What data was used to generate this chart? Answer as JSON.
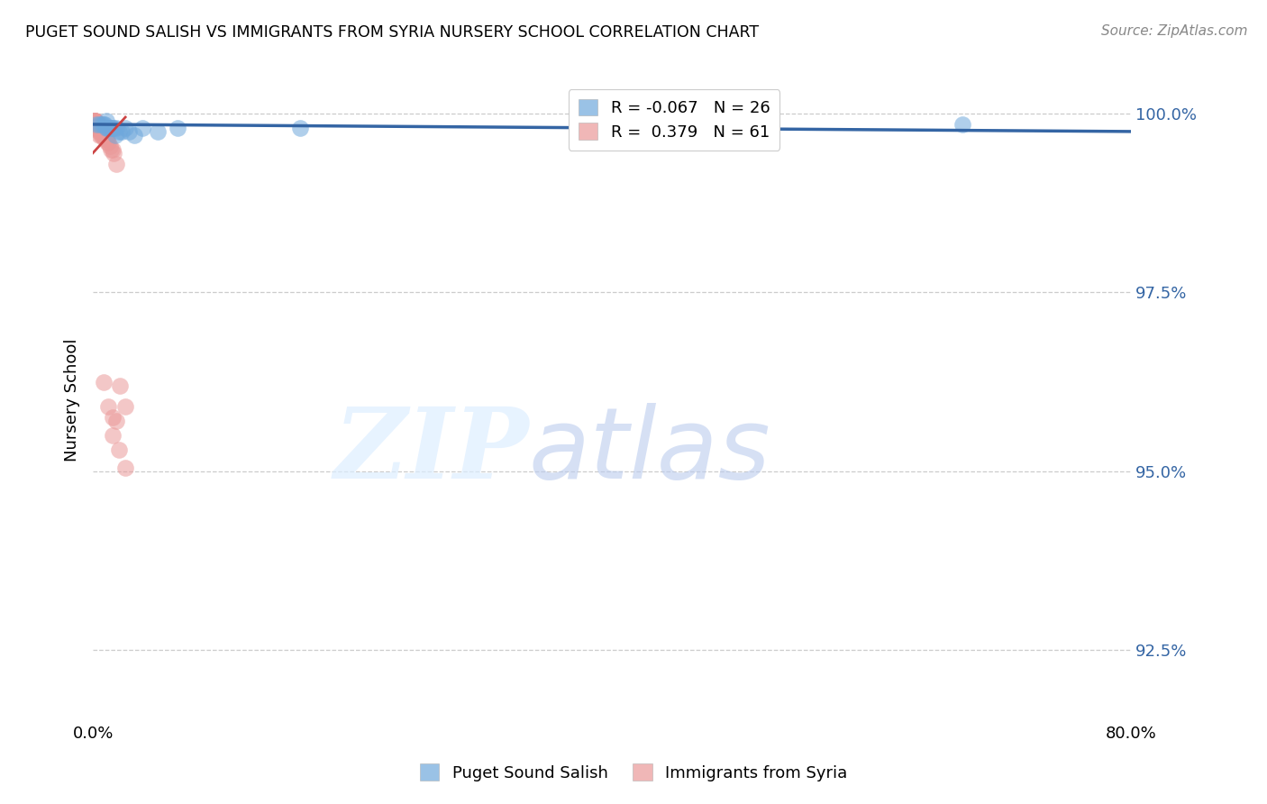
{
  "title": "PUGET SOUND SALISH VS IMMIGRANTS FROM SYRIA NURSERY SCHOOL CORRELATION CHART",
  "source": "Source: ZipAtlas.com",
  "ylabel": "Nursery School",
  "xlim": [
    0.0,
    0.8
  ],
  "ylim": [
    0.915,
    1.005
  ],
  "yticks": [
    0.925,
    0.95,
    0.975,
    1.0
  ],
  "ytick_labels": [
    "92.5%",
    "95.0%",
    "97.5%",
    "100.0%"
  ],
  "xticks": [
    0.0,
    0.1,
    0.2,
    0.3,
    0.4,
    0.5,
    0.6,
    0.7,
    0.8
  ],
  "xtick_labels": [
    "0.0%",
    "",
    "",
    "",
    "",
    "",
    "",
    "",
    "80.0%"
  ],
  "blue_color": "#6fa8dc",
  "pink_color": "#ea9999",
  "blue_line_color": "#3465a4",
  "pink_line_color": "#cc4444",
  "tick_color": "#3465a4",
  "legend_label_blue": "R = -0.067   N = 26",
  "legend_label_pink": "R =  0.379   N = 61",
  "legend_label_bottom_blue": "Puget Sound Salish",
  "legend_label_bottom_pink": "Immigrants from Syria",
  "blue_scatter_x": [
    0.003,
    0.005,
    0.007,
    0.008,
    0.009,
    0.01,
    0.01,
    0.011,
    0.012,
    0.013,
    0.014,
    0.015,
    0.016,
    0.017,
    0.018,
    0.02,
    0.022,
    0.025,
    0.028,
    0.032,
    0.038,
    0.05,
    0.065,
    0.16,
    0.45,
    0.67
  ],
  "blue_scatter_y": [
    0.9985,
    0.9985,
    0.9985,
    0.9985,
    0.9985,
    0.998,
    0.999,
    0.998,
    0.998,
    0.998,
    0.998,
    0.998,
    0.998,
    0.997,
    0.998,
    0.9975,
    0.9975,
    0.998,
    0.9975,
    0.997,
    0.998,
    0.9975,
    0.998,
    0.998,
    0.997,
    0.9985
  ],
  "pink_scatter_x": [
    0.001,
    0.001,
    0.001,
    0.001,
    0.001,
    0.001,
    0.001,
    0.001,
    0.001,
    0.001,
    0.002,
    0.002,
    0.002,
    0.002,
    0.002,
    0.002,
    0.002,
    0.002,
    0.003,
    0.003,
    0.003,
    0.003,
    0.003,
    0.003,
    0.004,
    0.004,
    0.004,
    0.004,
    0.005,
    0.005,
    0.005,
    0.005,
    0.005,
    0.006,
    0.006,
    0.006,
    0.007,
    0.007,
    0.008,
    0.008,
    0.009,
    0.009,
    0.01,
    0.01,
    0.011,
    0.011,
    0.012,
    0.013,
    0.014,
    0.015,
    0.016,
    0.018,
    0.021,
    0.025,
    0.008,
    0.012,
    0.015,
    0.018,
    0.015,
    0.02,
    0.025
  ],
  "pink_scatter_y": [
    0.9985,
    0.999,
    0.9985,
    0.999,
    0.9985,
    0.999,
    0.9985,
    0.999,
    0.999,
    0.9985,
    0.999,
    0.9985,
    0.999,
    0.9985,
    0.9985,
    0.998,
    0.998,
    0.9985,
    0.9985,
    0.998,
    0.9985,
    0.998,
    0.9985,
    0.998,
    0.998,
    0.9985,
    0.998,
    0.998,
    0.9985,
    0.998,
    0.9975,
    0.998,
    0.997,
    0.998,
    0.9975,
    0.997,
    0.997,
    0.9975,
    0.9975,
    0.997,
    0.997,
    0.9965,
    0.997,
    0.9965,
    0.9965,
    0.996,
    0.996,
    0.9955,
    0.995,
    0.995,
    0.9945,
    0.993,
    0.962,
    0.959,
    0.9625,
    0.959,
    0.9575,
    0.957,
    0.955,
    0.953,
    0.9505
  ],
  "blue_trendline_x": [
    0.0,
    0.8
  ],
  "blue_trendline_y": [
    0.9985,
    0.9975
  ],
  "pink_trendline_x": [
    0.0,
    0.025
  ],
  "pink_trendline_y": [
    0.9945,
    0.9995
  ]
}
